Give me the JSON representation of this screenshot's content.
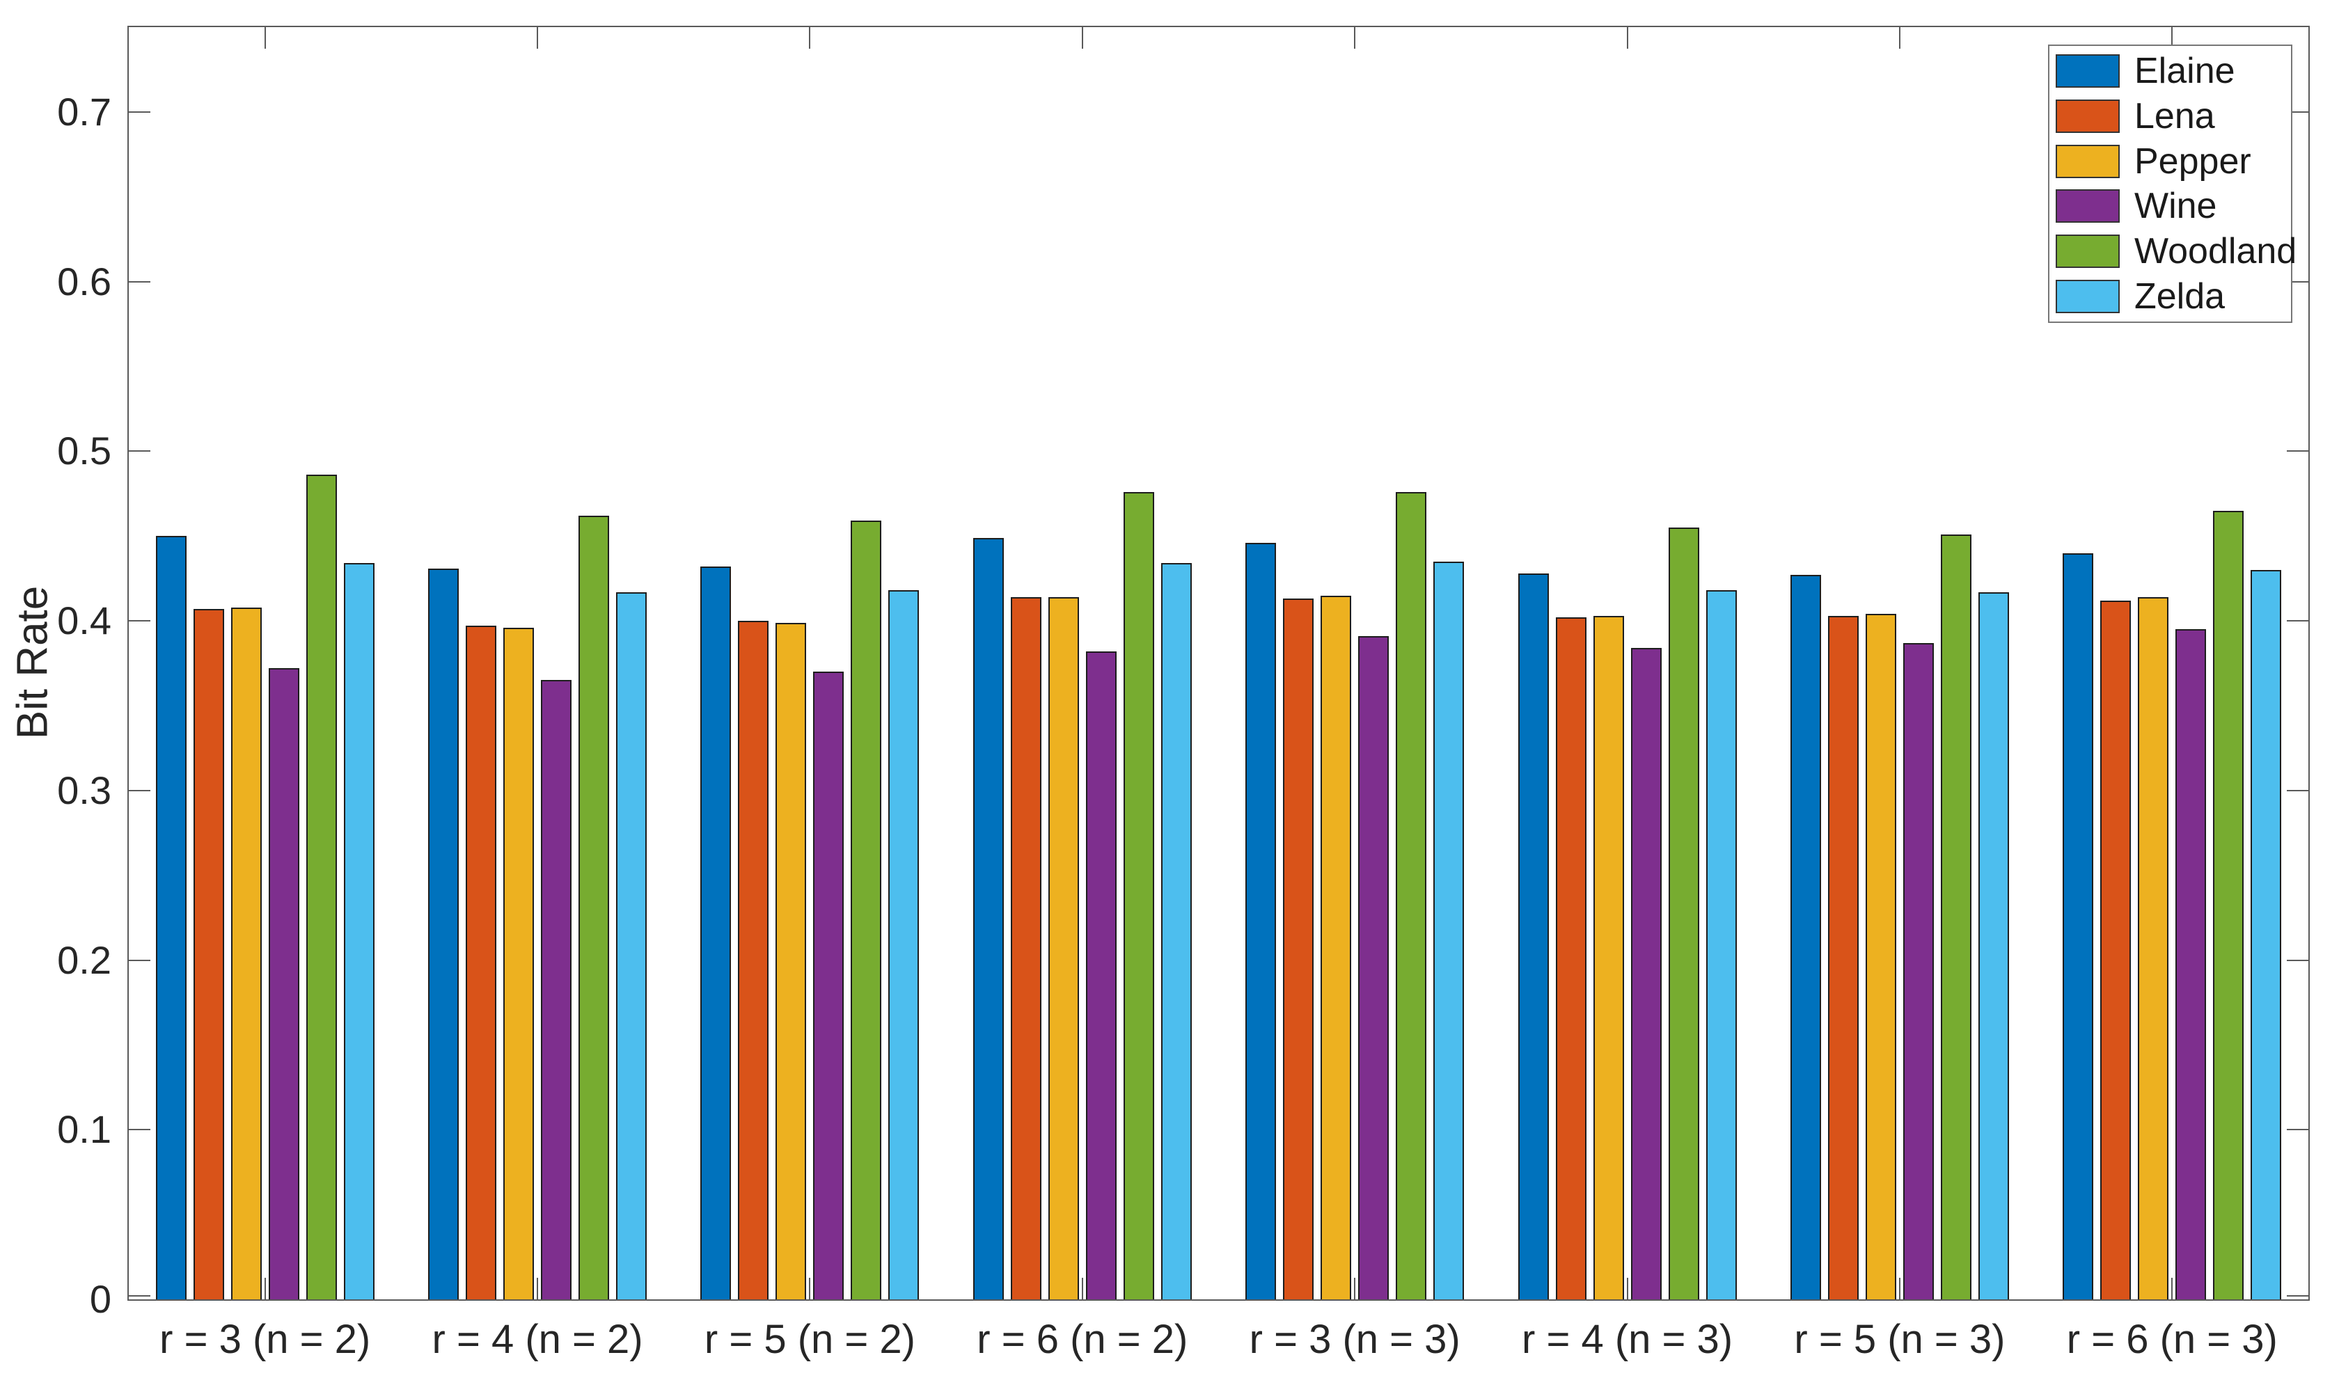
{
  "figure": {
    "background": "#ffffff",
    "axis_color": "#5a5a5a",
    "text_color": "#262626",
    "bar_edge_color": "#1d1d1d"
  },
  "chart_data": {
    "type": "bar",
    "title": "",
    "xlabel": "",
    "ylabel": "Bit Rate",
    "ylim": [
      0,
      0.75
    ],
    "yticks": [
      0,
      0.1,
      0.2,
      0.3,
      0.4,
      0.5,
      0.6,
      0.7
    ],
    "ytick_labels": [
      "0",
      "0.1",
      "0.2",
      "0.3",
      "0.4",
      "0.5",
      "0.6",
      "0.7"
    ],
    "grid": false,
    "legend_position": "top-right",
    "categories": [
      "r = 3 (n = 2)",
      "r = 4 (n = 2)",
      "r = 5 (n = 2)",
      "r = 6 (n = 2)",
      "r = 3 (n = 3)",
      "r = 4 (n = 3)",
      "r = 5 (n = 3)",
      "r = 6 (n = 3)"
    ],
    "series": [
      {
        "name": "Elaine",
        "color": "#0072BD",
        "values": [
          0.45,
          0.431,
          0.432,
          0.449,
          0.446,
          0.428,
          0.427,
          0.44
        ]
      },
      {
        "name": "Lena",
        "color": "#D95319",
        "values": [
          0.407,
          0.397,
          0.4,
          0.414,
          0.413,
          0.402,
          0.403,
          0.412
        ]
      },
      {
        "name": "Pepper",
        "color": "#EDB120",
        "values": [
          0.408,
          0.396,
          0.399,
          0.414,
          0.415,
          0.403,
          0.404,
          0.414
        ]
      },
      {
        "name": "Wine",
        "color": "#7E2F8E",
        "values": [
          0.372,
          0.365,
          0.37,
          0.382,
          0.391,
          0.384,
          0.387,
          0.395
        ]
      },
      {
        "name": "Woodland",
        "color": "#77AC30",
        "values": [
          0.486,
          0.462,
          0.459,
          0.476,
          0.476,
          0.455,
          0.451,
          0.465
        ]
      },
      {
        "name": "Zelda",
        "color": "#4DBEEE",
        "values": [
          0.434,
          0.417,
          0.418,
          0.434,
          0.435,
          0.418,
          0.417,
          0.43
        ]
      }
    ]
  }
}
